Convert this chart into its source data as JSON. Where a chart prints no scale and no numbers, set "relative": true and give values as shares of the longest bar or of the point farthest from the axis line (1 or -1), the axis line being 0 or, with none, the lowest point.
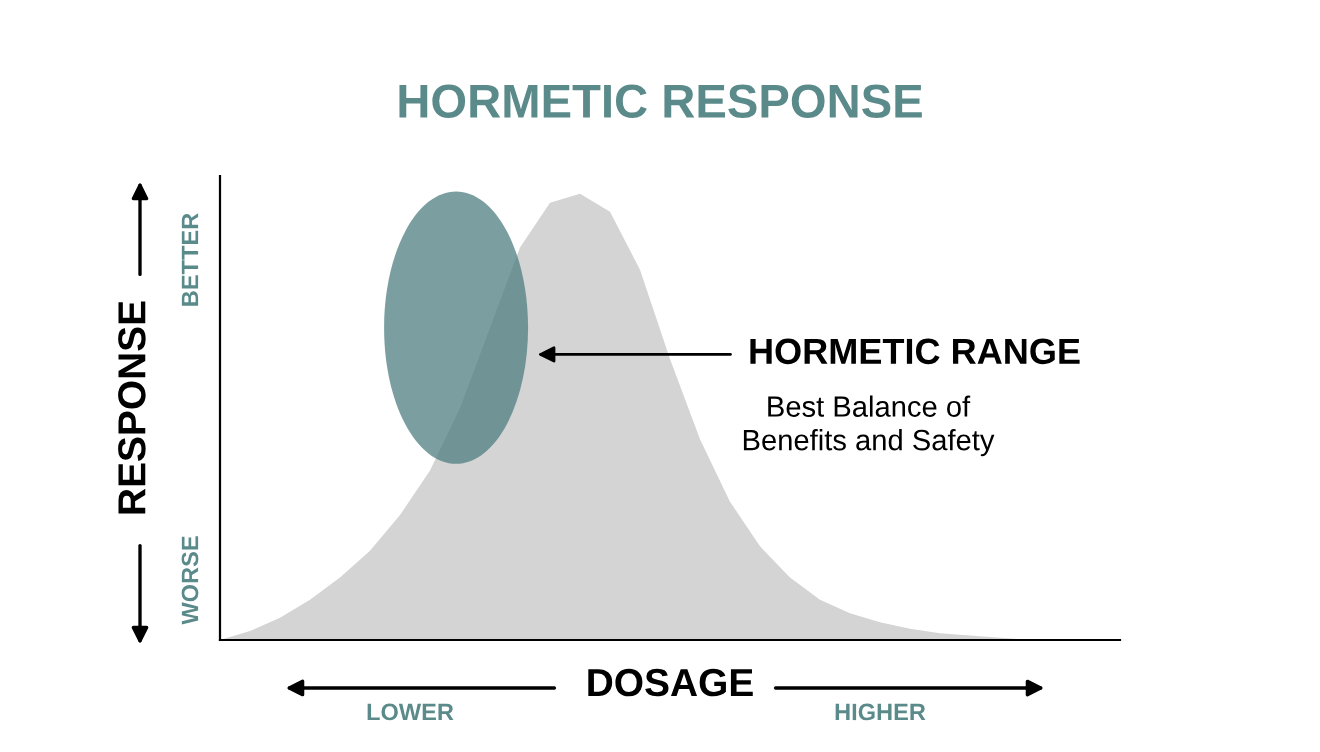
{
  "chart_data": {
    "type": "area",
    "title": "HORMETIC RESPONSE",
    "xlabel": "DOSAGE",
    "ylabel": "RESPONSE",
    "relative": true,
    "categories": [
      null,
      null,
      null,
      null,
      null,
      null,
      null,
      null,
      null,
      null,
      null,
      null,
      null,
      null,
      null,
      null,
      null,
      null,
      null,
      null,
      null,
      null,
      null,
      null,
      null,
      null,
      null,
      null,
      null,
      null,
      null
    ],
    "series": [
      {
        "color": "#d4d4d4",
        "values": [
          0.0,
          0.02,
          0.05,
          0.09,
          0.14,
          0.2,
          0.28,
          0.38,
          0.52,
          0.7,
          0.88,
          0.98,
          1.0,
          0.96,
          0.83,
          0.63,
          0.45,
          0.31,
          0.21,
          0.14,
          0.09,
          0.06,
          0.04,
          0.025,
          0.015,
          0.01,
          0.005,
          0.0,
          0.0,
          0.0,
          0.0
        ]
      }
    ],
    "annotations": [
      "HORMETIC RANGE",
      "Best Balance of\nBenefits and Safety",
      "LOWER",
      "HIGHER",
      "WORSE",
      "BETTER"
    ],
    "legend": false
  }
}
